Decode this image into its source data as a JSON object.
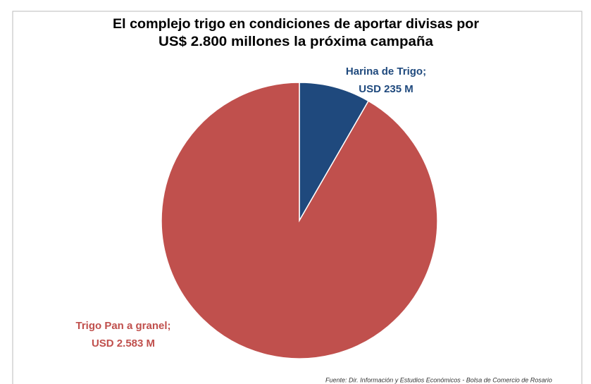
{
  "chart_data": {
    "type": "pie",
    "title": [
      "El complejo trigo en condiciones de aportar divisas por",
      "US$ 2.800 millones la próxima campaña"
    ],
    "categories": [
      "Harina de Trigo;",
      "Trigo Pan a granel;"
    ],
    "values": [
      235,
      2583
    ],
    "value_labels": [
      "USD 235 M",
      "USD 2.583 M"
    ],
    "colors": [
      "#1f497d",
      "#c0504d"
    ],
    "source": "Fuente: Dir. Información y Estudios Económicos - Bolsa de Comercio de Rosario"
  }
}
